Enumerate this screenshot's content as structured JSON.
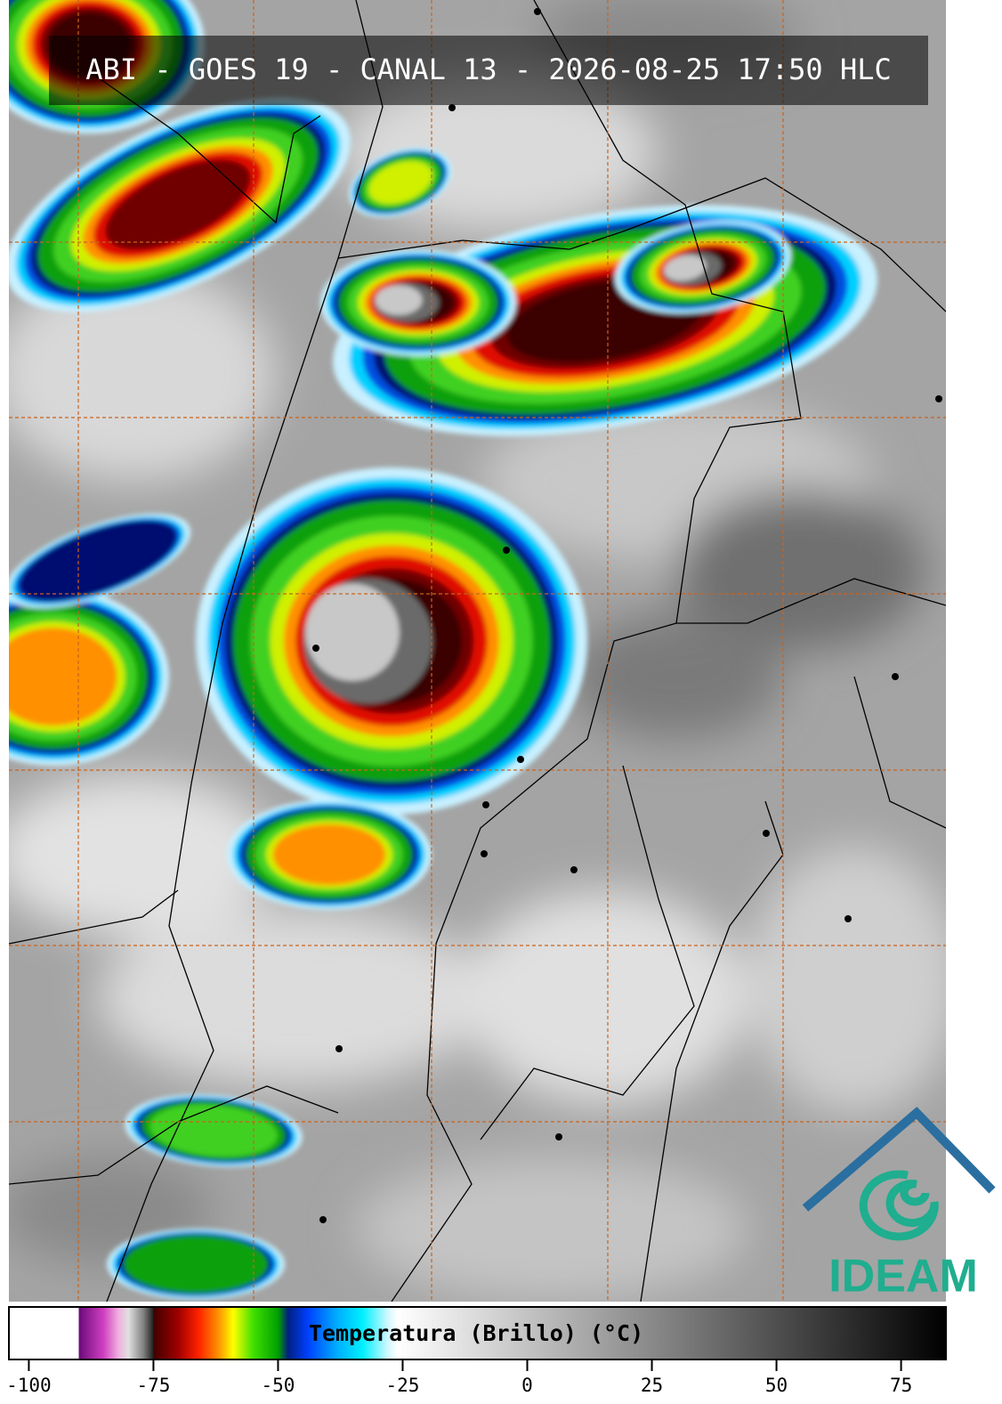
{
  "header": {
    "title": "ABI - GOES 19 - CANAL 13 - 2026-08-25 17:50 HLC"
  },
  "colorbar": {
    "label": "Temperatura (Brillo) (°C)",
    "xlim": [
      -104,
      84
    ],
    "xticks": [
      -100,
      -75,
      -50,
      -25,
      0,
      25,
      50,
      75
    ],
    "stops": [
      {
        "value": -104,
        "color": "#ffffff"
      },
      {
        "value": -90,
        "color": "#ffffff"
      },
      {
        "value": -90,
        "color": "#6a0a7a"
      },
      {
        "value": -85,
        "color": "#d040c0"
      },
      {
        "value": -82,
        "color": "#f0b0e0"
      },
      {
        "value": -80,
        "color": "#e0e0e0"
      },
      {
        "value": -77,
        "color": "#808080"
      },
      {
        "value": -75,
        "color": "#202020"
      },
      {
        "value": -75,
        "color": "#400000"
      },
      {
        "value": -70,
        "color": "#a00000"
      },
      {
        "value": -66,
        "color": "#ff2000"
      },
      {
        "value": -62,
        "color": "#ff9000"
      },
      {
        "value": -59,
        "color": "#ffff00"
      },
      {
        "value": -55,
        "color": "#40e000"
      },
      {
        "value": -50,
        "color": "#00a000"
      },
      {
        "value": -48,
        "color": "#002080"
      },
      {
        "value": -44,
        "color": "#0040ff"
      },
      {
        "value": -38,
        "color": "#00b0ff"
      },
      {
        "value": -33,
        "color": "#00f0ff"
      },
      {
        "value": -28,
        "color": "#d0f8ff"
      },
      {
        "value": -26,
        "color": "#ffffff"
      },
      {
        "value": 84,
        "color": "#000000"
      }
    ]
  },
  "logo": {
    "text": "IDEAM"
  }
}
